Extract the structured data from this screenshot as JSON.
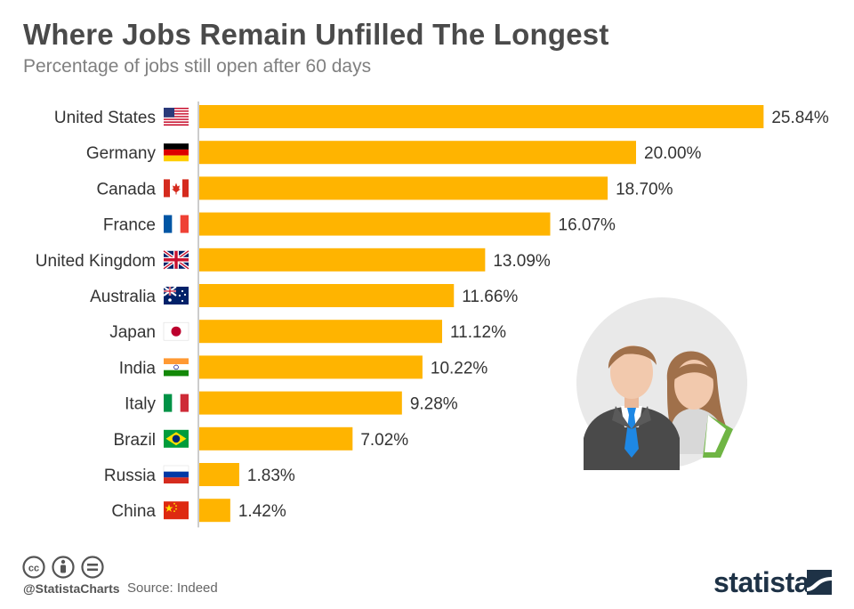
{
  "title": "Where Jobs Remain Unfilled The Longest",
  "subtitle": "Percentage of jobs still open after 60 days",
  "colors": {
    "bar": "#FFB400",
    "axis": "#BBBBBB",
    "brand": "#1E3246"
  },
  "chart_data": {
    "type": "bar",
    "orientation": "horizontal",
    "categories": [
      "United States",
      "Germany",
      "Canada",
      "France",
      "United Kingdom",
      "Australia",
      "Japan",
      "India",
      "Italy",
      "Brazil",
      "Russia",
      "China"
    ],
    "values": [
      25.84,
      20.0,
      18.7,
      16.07,
      13.09,
      11.66,
      11.12,
      10.22,
      9.28,
      7.02,
      1.83,
      1.42
    ],
    "value_labels": [
      "25.84%",
      "20.00%",
      "18.70%",
      "16.07%",
      "13.09%",
      "11.66%",
      "11.12%",
      "10.22%",
      "9.28%",
      "7.02%",
      "1.83%",
      "1.42%"
    ],
    "flags": [
      "us-flag-icon",
      "de-flag-icon",
      "ca-flag-icon",
      "fr-flag-icon",
      "gb-flag-icon",
      "au-flag-icon",
      "jp-flag-icon",
      "in-flag-icon",
      "it-flag-icon",
      "br-flag-icon",
      "ru-flag-icon",
      "cn-flag-icon"
    ],
    "xlim": [
      0,
      26
    ],
    "grid": false,
    "unit": "%"
  },
  "footer": {
    "license_icons": [
      "creative-commons-icon",
      "attribution-icon",
      "no-derivatives-icon"
    ],
    "handle": "@StatistaCharts",
    "source": "Source: Indeed",
    "brand": "statista"
  },
  "illustration": {
    "icon": "business-people-icon"
  }
}
